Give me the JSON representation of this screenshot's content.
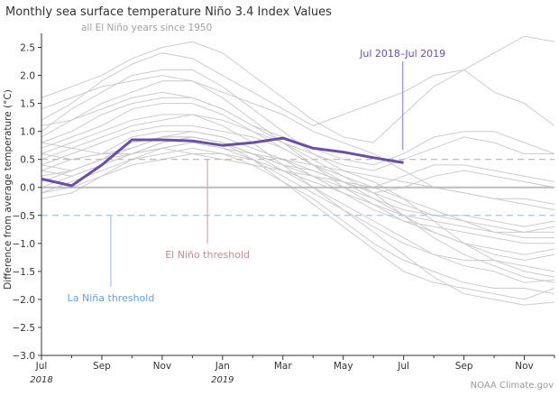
{
  "chart_data": {
    "type": "line",
    "title": "Monthly sea surface temperature Niño 3.4 Index Values",
    "ylabel": "Difference from average temperature (°C)",
    "xlabel": "",
    "ylim": [
      -3.0,
      2.75
    ],
    "yticks": [
      "-3.0",
      "-2.5",
      "-2.0",
      "-1.5",
      "-1.0",
      "-0.5",
      "0.0",
      "0.5",
      "1.0",
      "1.5",
      "2.0",
      "2.5"
    ],
    "x": [
      "Jul 2018",
      "Aug 2018",
      "Sep 2018",
      "Oct 2018",
      "Nov 2018",
      "Dec 2018",
      "Jan 2019",
      "Feb 2019",
      "Mar 2019",
      "Apr 2019",
      "May 2019",
      "Jun 2019",
      "Jul 2019",
      "Aug 2019",
      "Sep 2019",
      "Oct 2019",
      "Nov 2019",
      "Dec 2019"
    ],
    "xticks": [
      {
        "label": "Jul",
        "year": "2018",
        "i": 0
      },
      {
        "label": "Sep",
        "i": 2
      },
      {
        "label": "Nov",
        "i": 4
      },
      {
        "label": "Jan",
        "year": "2019",
        "i": 6
      },
      {
        "label": "Mar",
        "i": 8
      },
      {
        "label": "May",
        "i": 10
      },
      {
        "label": "Jul",
        "i": 12
      },
      {
        "label": "Sep",
        "i": 14
      },
      {
        "label": "Nov",
        "i": 16
      }
    ],
    "grid": false,
    "highlight": {
      "name": "Jul 2018–Jul 2019",
      "color": "#6a4fa3",
      "values": [
        0.15,
        0.03,
        0.4,
        0.85,
        0.85,
        0.83,
        0.75,
        0.8,
        0.88,
        0.7,
        0.63,
        0.53,
        0.44
      ]
    },
    "background_series_label": "all El Niño years since 1950",
    "background_color": "#cccccc",
    "background_series": [
      [
        1.6,
        1.8,
        2.0,
        2.3,
        2.5,
        2.6,
        2.4,
        2.0,
        1.6,
        1.2,
        0.9,
        0.8,
        1.3,
        1.8,
        2.1,
        2.4,
        2.7,
        2.6
      ],
      [
        1.2,
        1.5,
        1.9,
        2.2,
        2.4,
        2.3,
        2.0,
        1.7,
        1.4,
        1.1,
        1.3,
        1.5,
        1.7,
        2.0,
        2.1,
        1.7,
        1.5,
        1.1
      ],
      [
        1.0,
        1.4,
        1.7,
        2.0,
        2.1,
        2.1,
        1.8,
        1.4,
        1.0,
        0.6,
        0.3,
        0.1,
        -0.2,
        -0.6,
        -1.0,
        -1.3,
        -1.5,
        -1.6
      ],
      [
        0.9,
        1.2,
        1.5,
        1.7,
        1.9,
        1.9,
        1.7,
        1.5,
        1.3,
        1.0,
        0.8,
        0.6,
        0.3,
        0.0,
        -0.1,
        -0.2,
        -0.3,
        -0.4
      ],
      [
        0.8,
        1.0,
        1.3,
        1.5,
        1.6,
        1.6,
        1.4,
        1.1,
        0.8,
        0.5,
        0.2,
        -0.1,
        -0.5,
        -0.9,
        -1.2,
        -1.4,
        -1.6,
        -1.7
      ],
      [
        0.7,
        0.9,
        1.1,
        1.4,
        1.5,
        1.5,
        1.3,
        1.0,
        0.7,
        0.4,
        0.1,
        -0.2,
        -0.5,
        -0.8,
        -1.0,
        -1.1,
        -1.2,
        -1.1
      ],
      [
        0.6,
        0.8,
        1.0,
        1.2,
        1.3,
        1.3,
        1.2,
        1.0,
        0.8,
        0.6,
        0.4,
        0.3,
        0.5,
        0.7,
        0.9,
        0.8,
        0.6,
        0.6
      ],
      [
        0.5,
        0.7,
        0.9,
        1.1,
        1.2,
        1.3,
        1.1,
        0.8,
        0.4,
        0.0,
        -0.4,
        -0.8,
        -1.2,
        -1.6,
        -1.9,
        -2.0,
        -2.1,
        -2.05
      ],
      [
        0.4,
        0.6,
        0.8,
        1.0,
        1.1,
        1.1,
        1.0,
        0.9,
        0.7,
        0.4,
        0.2,
        0.0,
        -0.2,
        -0.4,
        -0.6,
        -0.8,
        -0.9,
        -0.9
      ],
      [
        0.3,
        0.5,
        0.6,
        0.9,
        1.0,
        1.0,
        0.9,
        0.7,
        0.5,
        0.2,
        -0.1,
        -0.4,
        -0.6,
        -0.7,
        -0.8,
        -0.9,
        -1.0,
        -1.0
      ],
      [
        0.2,
        0.3,
        0.5,
        0.7,
        0.9,
        1.0,
        0.9,
        0.7,
        0.5,
        0.3,
        0.1,
        -0.1,
        0.0,
        0.2,
        0.3,
        0.2,
        0.1,
        0.0
      ],
      [
        0.0,
        0.2,
        0.4,
        0.6,
        0.8,
        0.9,
        0.8,
        0.6,
        0.3,
        0.0,
        -0.3,
        -0.6,
        -0.9,
        -1.2,
        -1.3,
        -1.3,
        -1.4,
        -1.5
      ],
      [
        -0.1,
        0.1,
        0.3,
        0.5,
        0.7,
        0.8,
        0.7,
        0.5,
        0.2,
        -0.1,
        -0.4,
        -0.7,
        -1.0,
        -1.2,
        -1.4,
        -1.5,
        -1.7,
        -1.65
      ],
      [
        -0.2,
        -0.1,
        0.2,
        0.5,
        0.6,
        0.7,
        0.6,
        0.4,
        0.1,
        -0.2,
        -0.6,
        -1.0,
        -1.3,
        -1.5,
        -1.7,
        -1.8,
        -1.8,
        -1.9
      ],
      [
        0.8,
        0.7,
        0.6,
        0.7,
        0.9,
        0.9,
        0.8,
        0.6,
        0.5,
        0.4,
        0.3,
        0.2,
        0.1,
        0.0,
        -0.1,
        -0.2,
        -0.2,
        -0.3
      ],
      [
        0.6,
        0.5,
        0.6,
        0.6,
        0.7,
        0.8,
        0.7,
        0.6,
        0.4,
        0.3,
        0.1,
        0.0,
        0.2,
        0.4,
        0.4,
        0.3,
        0.2,
        0.1
      ],
      [
        0.4,
        0.3,
        0.5,
        0.6,
        0.7,
        0.6,
        0.6,
        0.5,
        0.3,
        0.1,
        -0.1,
        -0.3,
        -0.5,
        -0.6,
        -0.7,
        -0.8,
        -0.8,
        -0.8
      ],
      [
        1.4,
        1.6,
        1.8,
        1.9,
        2.0,
        1.9,
        1.6,
        1.2,
        0.8,
        0.4,
        0.0,
        -0.3,
        -0.6,
        -0.8,
        -1.0,
        -1.2,
        -1.3,
        -1.2
      ],
      [
        1.1,
        1.2,
        1.4,
        1.6,
        1.7,
        1.6,
        1.4,
        1.1,
        0.9,
        0.7,
        0.5,
        0.4,
        0.6,
        0.9,
        1.0,
        1.0,
        0.8,
        0.6
      ],
      [
        0.1,
        0.3,
        0.5,
        0.8,
        0.9,
        0.9,
        0.8,
        0.6,
        0.4,
        0.2,
        0.0,
        -0.2,
        -0.4,
        -0.5,
        -0.5,
        -0.6,
        -0.7,
        -0.6
      ],
      [
        0.3,
        0.2,
        0.4,
        0.6,
        0.8,
        0.9,
        0.8,
        0.5,
        0.1,
        -0.3,
        -0.7,
        -1.1,
        -1.5,
        -1.7,
        -1.8,
        -1.9,
        -2.0,
        -1.8
      ],
      [
        -0.1,
        0.0,
        0.2,
        0.4,
        0.5,
        0.6,
        0.5,
        0.4,
        0.3,
        0.2,
        0.1,
        -0.1,
        -0.3,
        -0.5,
        -0.6,
        -0.7,
        -0.8,
        -0.7
      ]
    ],
    "thresholds": [
      {
        "label": "El Niño threshold",
        "value": 0.5,
        "color": "#d2a9a9",
        "text_color": "#c48d8d",
        "anchor_i": 5.5
      },
      {
        "label": "La Niña threshold",
        "value": -0.5,
        "color": "#a3c6ea",
        "text_color": "#6b9fd3",
        "anchor_i": 2.3
      }
    ],
    "zero_line_color": "#bbbbbb",
    "credit": "NOAA Climate.gov"
  }
}
